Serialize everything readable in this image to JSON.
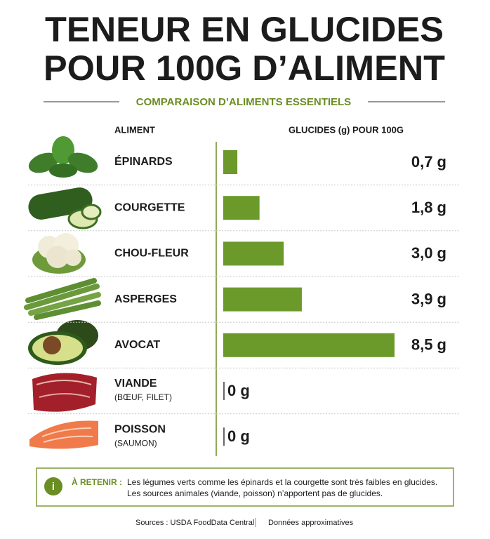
{
  "title_lines": [
    "TENEUR EN GLUCIDES",
    "POUR 100G D’ALIMENT"
  ],
  "subtitle": "COMPARAISON D’ALIMENTS ESSENTIELS",
  "chart_data": {
    "type": "bar",
    "orientation": "horizontal",
    "color": "#6b9a2b",
    "category_header": "ALIMENT",
    "value_header": "GLUCIDES (g) POUR 100G",
    "categories": [
      "ÉPINARDS",
      "COURGETTE",
      "CHOU-FLEUR",
      "ASPERGES",
      "AVOCAT",
      "VIANDE",
      "POISSON"
    ],
    "sublabels": [
      null,
      null,
      null,
      null,
      null,
      "(BŒUF, FILET)",
      "(SAUMON)"
    ],
    "values": [
      0.7,
      1.8,
      3.0,
      3.9,
      8.5,
      0,
      0
    ],
    "value_labels": [
      "0,7 g",
      "1,8 g",
      "3,0 g",
      "3,9 g",
      "8,5 g",
      "0 g",
      "0 g"
    ]
  },
  "note": {
    "label": "À RETENIR :",
    "lines": [
      "Les légumes verts comme les épinards et la courgette sont très faibles en glucides.",
      "Les sources animales (viande, poisson) n’apportent pas de glucides."
    ]
  },
  "footer": {
    "sources": "Sources : USDA FoodData Central",
    "remark": "Données approximatives"
  }
}
